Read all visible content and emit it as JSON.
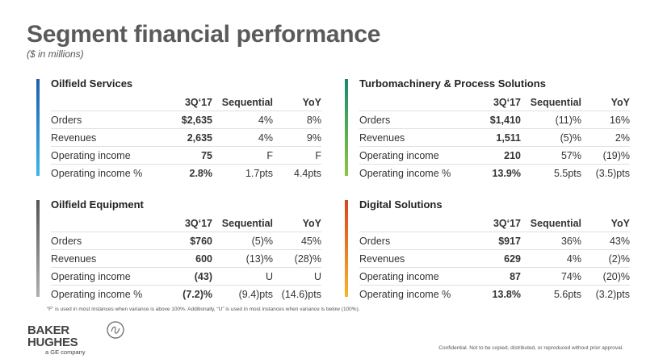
{
  "title": "Segment financial performance",
  "subtitle": "($ in millions)",
  "columns": [
    "3Q‘17",
    "Sequential",
    "YoY"
  ],
  "panels": [
    {
      "name": "Oilfield Services",
      "color_top": "#1f5fae",
      "color_bottom": "#3fb6e6",
      "rows": [
        {
          "label": "Orders",
          "q": "$2,635",
          "seq": "4%",
          "yoy": "8%"
        },
        {
          "label": "Revenues",
          "q": "2,635",
          "seq": "4%",
          "yoy": "9%"
        },
        {
          "label": "Operating income",
          "q": "75",
          "seq": "F",
          "yoy": "F"
        },
        {
          "label": "Operating income %",
          "q": "2.8%",
          "seq": "1.7pts",
          "yoy": "4.4pts"
        }
      ]
    },
    {
      "name": "Turbomachinery & Process Solutions",
      "color_top": "#1a8a6e",
      "color_bottom": "#8dc63f",
      "rows": [
        {
          "label": "Orders",
          "q": "$1,410",
          "seq": "(11)%",
          "yoy": "16%"
        },
        {
          "label": "Revenues",
          "q": "1,511",
          "seq": "(5)%",
          "yoy": "2%"
        },
        {
          "label": "Operating income",
          "q": "210",
          "seq": "57%",
          "yoy": "(19)%"
        },
        {
          "label": "Operating income %",
          "q": "13.9%",
          "seq": "5.5pts",
          "yoy": "(3.5)pts"
        }
      ]
    },
    {
      "name": "Oilfield Equipment",
      "color_top": "#555555",
      "color_bottom": "#b0b0b0",
      "rows": [
        {
          "label": "Orders",
          "q": "$760",
          "seq": "(5)%",
          "yoy": "45%"
        },
        {
          "label": "Revenues",
          "q": "600",
          "seq": "(13)%",
          "yoy": "(28)%"
        },
        {
          "label": "Operating income",
          "q": "(43)",
          "seq": "U",
          "yoy": "U"
        },
        {
          "label": "Operating income %",
          "q": "(7.2)%",
          "seq": "(9.4)pts",
          "yoy": "(14.6)pts"
        }
      ]
    },
    {
      "name": "Digital Solutions",
      "color_top": "#d9441e",
      "color_bottom": "#f7b52c",
      "rows": [
        {
          "label": "Orders",
          "q": "$917",
          "seq": "36%",
          "yoy": "43%"
        },
        {
          "label": "Revenues",
          "q": "629",
          "seq": "4%",
          "yoy": "(2)%"
        },
        {
          "label": "Operating income",
          "q": "87",
          "seq": "74%",
          "yoy": "(20)%"
        },
        {
          "label": "Operating income %",
          "q": "13.8%",
          "seq": "5.6pts",
          "yoy": "(3.2)pts"
        }
      ]
    }
  ],
  "footnote": "“F” is used in most instances when variance is above 100%. Additionally, “U” is used in most instances when variance is below (100%).",
  "confidential": "Confidential. Not to be copied, distributed, or reproduced without prior approval.",
  "logo": {
    "line1": "BAKER",
    "line2": "HUGHES",
    "tagline": "a GE company"
  }
}
